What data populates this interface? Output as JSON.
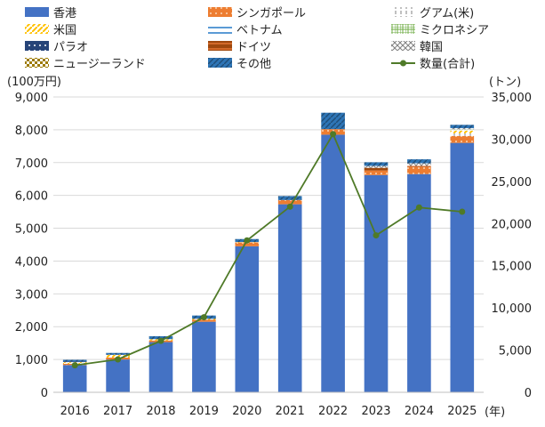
{
  "chart_data": {
    "type": "bar",
    "stacked": true,
    "categories": [
      "2016",
      "2017",
      "2018",
      "2019",
      "2020",
      "2021",
      "2022",
      "2023",
      "2024",
      "2025"
    ],
    "x_unit_label": "(年)",
    "left_axis": {
      "unit_label": "(100万円)",
      "ylim": [
        0,
        9000
      ],
      "ticks": [
        "0",
        "1,000",
        "2,000",
        "3,000",
        "4,000",
        "5,000",
        "6,000",
        "7,000",
        "8,000",
        "9,000"
      ],
      "tick_values": [
        0,
        1000,
        2000,
        3000,
        4000,
        5000,
        6000,
        7000,
        8000,
        9000
      ]
    },
    "right_axis": {
      "unit_label": "(トン)",
      "ylim": [
        0,
        35000
      ],
      "ticks": [
        "0",
        "5,000",
        "10,000",
        "15,000",
        "20,000",
        "25,000",
        "30,000",
        "35,000"
      ],
      "tick_values": [
        0,
        5000,
        10000,
        15000,
        20000,
        25000,
        30000,
        35000
      ]
    },
    "grid": true,
    "legend_position": "top",
    "series": [
      {
        "name": "香港",
        "color": "#4472c4",
        "values": [
          830,
          1000,
          1530,
          2150,
          4450,
          5730,
          7850,
          6620,
          6650,
          7600
        ]
      },
      {
        "name": "シンガポール",
        "color": "#ed7d31",
        "values": [
          40,
          60,
          50,
          60,
          120,
          130,
          170,
          140,
          210,
          210
        ]
      },
      {
        "name": "グアム(米)",
        "color": "#c0c0c0",
        "values": [
          0,
          0,
          0,
          0,
          0,
          0,
          0,
          0,
          0,
          80
        ]
      },
      {
        "name": "米国",
        "color": "#ffc000",
        "values": [
          50,
          80,
          40,
          30,
          10,
          0,
          0,
          0,
          0,
          80
        ]
      },
      {
        "name": "ベトナム",
        "color": "#5b9bd5",
        "values": [
          0,
          0,
          0,
          0,
          0,
          0,
          0,
          0,
          0,
          20
        ]
      },
      {
        "name": "ミクロネシア",
        "color": "#70ad47",
        "values": [
          0,
          0,
          0,
          0,
          0,
          0,
          0,
          0,
          0,
          20
        ]
      },
      {
        "name": "パラオ",
        "color": "#264478",
        "values": [
          20,
          10,
          0,
          0,
          0,
          0,
          0,
          0,
          0,
          0
        ]
      },
      {
        "name": "ドイツ",
        "color": "#9e480e",
        "values": [
          0,
          0,
          0,
          0,
          0,
          0,
          0,
          80,
          40,
          0
        ]
      },
      {
        "name": "韓国",
        "color": "#808080",
        "values": [
          0,
          0,
          0,
          0,
          0,
          0,
          0,
          60,
          80,
          40
        ]
      },
      {
        "name": "ニュージーランド",
        "color": "#9c7a00",
        "values": [
          0,
          0,
          0,
          0,
          0,
          0,
          0,
          0,
          0,
          0
        ]
      },
      {
        "name": "その他",
        "color": "#2e75b6",
        "values": [
          50,
          50,
          90,
          100,
          90,
          120,
          500,
          110,
          120,
          100
        ]
      }
    ],
    "line_series": {
      "name": "数量(合計)",
      "color": "#4f7a28",
      "axis": "right",
      "values": [
        3200,
        3900,
        6100,
        8900,
        18000,
        22000,
        30600,
        18600,
        21900,
        21400
      ]
    }
  }
}
